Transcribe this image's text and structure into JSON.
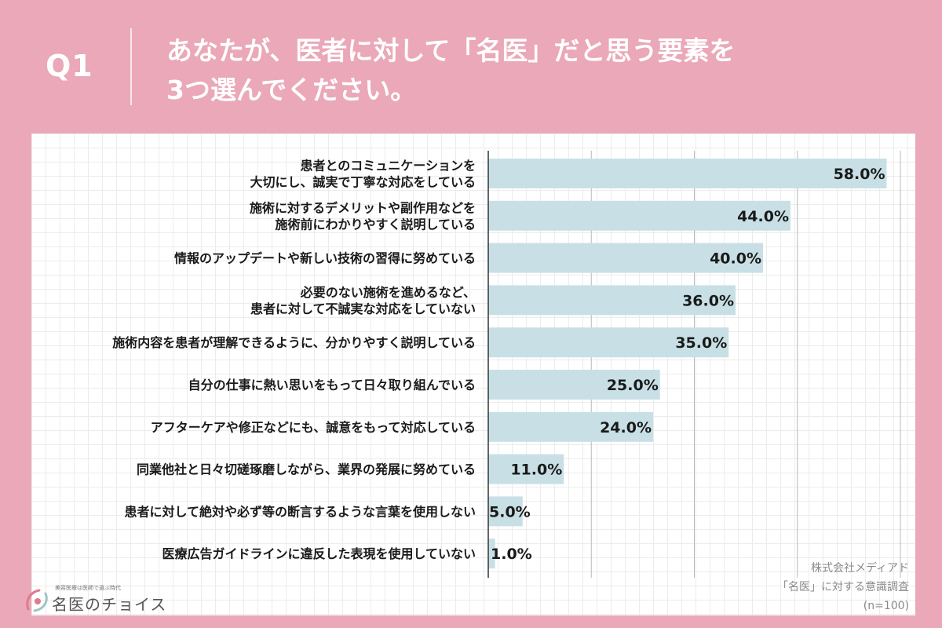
{
  "header": {
    "q_label": "Q1",
    "question_lines": [
      "あなたが、医者に対して「名医」だと思う要素を",
      "3つ選んでください。"
    ]
  },
  "chart_data": {
    "type": "bar",
    "orientation": "horizontal",
    "categories": [
      [
        "患者とのコミュニケーションを",
        "大切にし、誠実で丁寧な対応をしている"
      ],
      [
        "施術に対するデメリットや副作用などを",
        "施術前にわかりやすく説明している"
      ],
      [
        "情報のアップデートや新しい技術の習得に努めている"
      ],
      [
        "必要のない施術を進めるなど、",
        "患者に対して不誠実な対応をしていない"
      ],
      [
        "施術内容を患者が理解できるように、分かりやすく説明している"
      ],
      [
        "自分の仕事に熱い思いをもって日々取り組んでいる"
      ],
      [
        "アフターケアや修正などにも、誠意をもって対応している"
      ],
      [
        "同業他社と日々切磋琢磨しながら、業界の発展に努めている"
      ],
      [
        "患者に対して絶対や必ず等の断言するような言葉を使用しない"
      ],
      [
        "医療広告ガイドラインに違反した表現を使用していない"
      ]
    ],
    "values": [
      58.0,
      44.0,
      40.0,
      36.0,
      35.0,
      25.0,
      24.0,
      11.0,
      5.0,
      1.0
    ],
    "value_labels": [
      "58.0%",
      "44.0%",
      "40.0%",
      "36.0%",
      "35.0%",
      "25.0%",
      "24.0%",
      "11.0%",
      "5.0%",
      "1.0%"
    ],
    "xlim": [
      0,
      60
    ],
    "gridlines_at": [
      15,
      30,
      45,
      60
    ],
    "grid": true,
    "bar_color": "#c8e0e5",
    "axis_color": "#333333"
  },
  "source": {
    "lines": [
      "株式会社メディアド",
      "「名医」に対する意識調査",
      "(n=100)"
    ]
  },
  "logo": {
    "tagline": "美容医療は医師で選ぶ時代",
    "name": "名医のチョイス",
    "accent_colors": [
      "#e07a8c",
      "#9cc6c2"
    ]
  },
  "colors": {
    "background": "#eaa8b8",
    "panel": "#ffffff",
    "header_text": "#ffffff"
  }
}
